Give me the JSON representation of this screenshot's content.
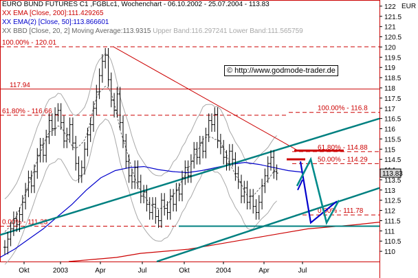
{
  "header": {
    "instrument": "EURO BUND FUTURES C1 ,FGBLc1",
    "chart_type": "Wochenchart",
    "date_range": "06.10.2002 - 25.07.2004",
    "last": "113.83",
    "ema200_tag": "XX",
    "ema200": "EMA [Close, 200]:111.429265",
    "ema50_tag": "XX",
    "ema50": "EMA(2) [Close, 50]:113.866601",
    "bbd_tag": "XX",
    "bbd_main": "BBD [Close, 20, 2] Moving Average:113.9315",
    "bbd_upper": "Upper Band:116.297241",
    "bbd_lower": "Lower Band:111.565759"
  },
  "credit": "© http://www.godmode-trader.de",
  "currency": "EUR",
  "colors": {
    "price": "#000000",
    "bollinger": "#a8a8a8",
    "ema200": "#cc0000",
    "ema50": "#0000cc",
    "trend": "#008080",
    "levels": "#cc0000",
    "projection_blue": "#0000cc",
    "projection_teal": "#008b8b"
  },
  "chart_data": {
    "type": "line",
    "title": "EURO BUND FUTURES C1 ,FGBLc1, Wochenchart - 06.10.2002 - 25.07.2004",
    "ylim": [
      109.5,
      122.3
    ],
    "y_ticks": [
      110,
      110.5,
      111,
      111.5,
      112,
      112.5,
      113,
      113.5,
      114,
      114.5,
      115,
      115.5,
      116,
      116.5,
      117,
      117.5,
      118,
      118.5,
      119,
      119.5,
      120,
      120.5,
      121,
      121.5,
      122
    ],
    "x_ticks": [
      "Okt",
      "2003",
      "Apr",
      "Jul",
      "Okt",
      "2004",
      "Apr",
      "Jul"
    ],
    "grid": false,
    "last_price_marker": "113.83",
    "series": [
      {
        "name": "EURO BUND FUTURES C1",
        "values": [
          110.2,
          110.6,
          111.1,
          111.6,
          111.3,
          111.8,
          112.4,
          113.0,
          113.6,
          113.2,
          113.9,
          114.7,
          115.2,
          114.7,
          115.6,
          116.4,
          116.0,
          116.7,
          116.9,
          116.3,
          115.4,
          115.7,
          116.2,
          115.3,
          114.3,
          113.7,
          114.1,
          115.0,
          115.7,
          116.2,
          117.0,
          117.8,
          118.6,
          119.3,
          119.6,
          118.4,
          117.4,
          116.9,
          117.7,
          116.3,
          115.4,
          114.4,
          113.7,
          113.4,
          114.1,
          113.4,
          112.7,
          112.9,
          112.3,
          111.9,
          112.3,
          111.7,
          111.5,
          112.5,
          112.1,
          111.9,
          112.7,
          112.3,
          113.0,
          112.8,
          113.6,
          114.1,
          113.7,
          114.4,
          115.0,
          114.6,
          115.3,
          114.9,
          115.7,
          116.4,
          116.2,
          116.7,
          115.4,
          115.1,
          114.6,
          114.3,
          114.9,
          114.5,
          113.8,
          113.4,
          112.7,
          113.1,
          112.4,
          112.7,
          112.2,
          111.9,
          112.4,
          113.2,
          113.7,
          114.3,
          114.6,
          113.9,
          113.83
        ]
      },
      {
        "name": "EMA [Close, 200]",
        "values": [
          109.5,
          109.6,
          109.7,
          109.9,
          110.0,
          110.1,
          110.3,
          110.5,
          110.7,
          110.9,
          111.1,
          111.2,
          111.3,
          111.43
        ]
      },
      {
        "name": "EMA(2) [Close, 50]",
        "values": [
          109.7,
          110.1,
          110.6,
          111.1,
          111.7,
          112.3,
          113.0,
          113.6,
          113.95,
          114.1,
          114.15,
          114.0,
          113.9,
          113.85,
          113.95,
          114.1,
          114.25,
          114.35,
          114.25,
          114.1,
          113.95,
          113.87
        ]
      }
    ],
    "levels": [
      {
        "label": "100.00% - 120.01",
        "value": 120.01,
        "style": "dashed"
      },
      {
        "label": "117.94",
        "value": 117.94,
        "style": "solid"
      },
      {
        "label": "61.80% - 116.66",
        "value": 116.66,
        "style": "dashed"
      },
      {
        "label": "0.00% - 111.23",
        "value": 111.23,
        "style": "dashed"
      },
      {
        "label": "100.00% - 116.8",
        "value": 116.8,
        "style": "dashed"
      },
      {
        "label": "61.80% - 114.88",
        "value": 114.88,
        "style": "dashed"
      },
      {
        "label": "50.00% - 114.29",
        "value": 114.29,
        "style": "dashed"
      },
      {
        "label": "0.00% - 111.78",
        "value": 111.78,
        "style": "dashed"
      }
    ]
  }
}
